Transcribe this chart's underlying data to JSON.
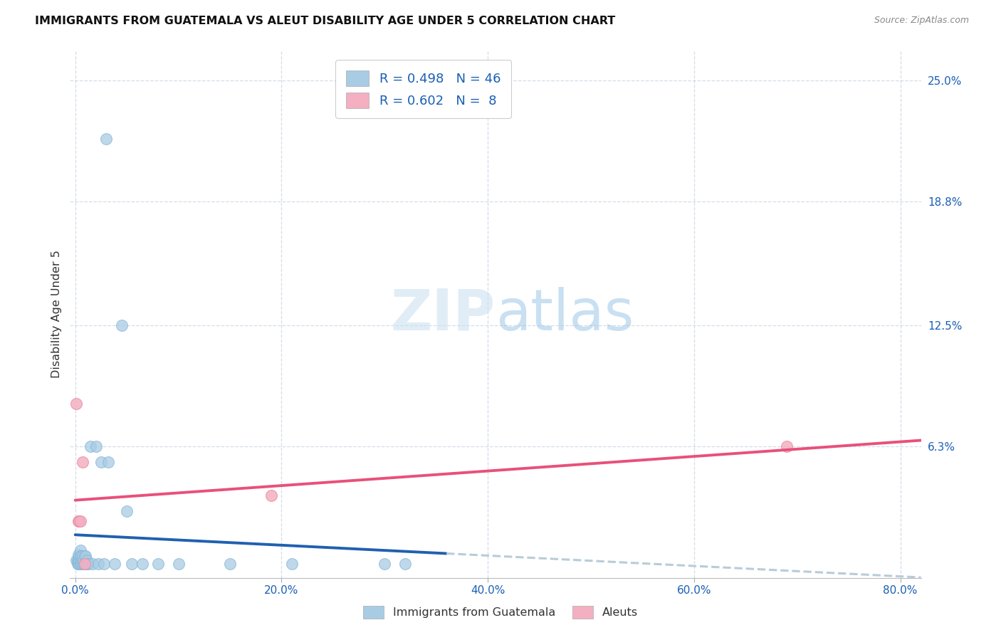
{
  "title": "IMMIGRANTS FROM GUATEMALA VS ALEUT DISABILITY AGE UNDER 5 CORRELATION CHART",
  "source": "Source: ZipAtlas.com",
  "ylabel": "Disability Age Under 5",
  "legend_label1": "Immigrants from Guatemala",
  "legend_label2": "Aleuts",
  "r1": 0.498,
  "n1": 46,
  "r2": 0.602,
  "n2": 8,
  "xlim": [
    -0.005,
    0.82
  ],
  "ylim": [
    -0.004,
    0.265
  ],
  "ytick_vals": [
    0.063,
    0.125,
    0.188,
    0.25
  ],
  "ytick_labels": [
    "6.3%",
    "12.5%",
    "18.8%",
    "25.0%"
  ],
  "xtick_vals": [
    0.0,
    0.2,
    0.4,
    0.6,
    0.8
  ],
  "xtick_labels": [
    "0.0%",
    "20.0%",
    "40.0%",
    "60.0%",
    "80.0%"
  ],
  "blue_color": "#a8cce4",
  "blue_edge": "#88b8d8",
  "pink_color": "#f4afc0",
  "pink_edge": "#e890a8",
  "trend_blue_solid": "#2060b0",
  "trend_pink": "#e8507a",
  "trend_dash_color": "#b8ccd8",
  "watermark_color": "#d4e8f5",
  "bg_color": "#ffffff",
  "grid_color": "#d4dde8",
  "blue_x": [
    0.001,
    0.002,
    0.002,
    0.003,
    0.003,
    0.003,
    0.004,
    0.004,
    0.004,
    0.005,
    0.005,
    0.005,
    0.005,
    0.006,
    0.006,
    0.007,
    0.007,
    0.007,
    0.008,
    0.008,
    0.009,
    0.009,
    0.01,
    0.01,
    0.011,
    0.012,
    0.013,
    0.015,
    0.017,
    0.02,
    0.022,
    0.025,
    0.028,
    0.032,
    0.038,
    0.05,
    0.055,
    0.065,
    0.08,
    0.1,
    0.15,
    0.21,
    0.3,
    0.32,
    0.03,
    0.045
  ],
  "blue_y": [
    0.005,
    0.003,
    0.005,
    0.003,
    0.005,
    0.008,
    0.003,
    0.005,
    0.007,
    0.003,
    0.005,
    0.007,
    0.01,
    0.003,
    0.007,
    0.003,
    0.005,
    0.007,
    0.003,
    0.005,
    0.003,
    0.007,
    0.003,
    0.007,
    0.005,
    0.003,
    0.003,
    0.063,
    0.003,
    0.063,
    0.003,
    0.055,
    0.003,
    0.055,
    0.003,
    0.03,
    0.003,
    0.003,
    0.003,
    0.003,
    0.003,
    0.003,
    0.003,
    0.003,
    0.22,
    0.125
  ],
  "pink_x": [
    0.001,
    0.003,
    0.004,
    0.005,
    0.007,
    0.009,
    0.19,
    0.69
  ],
  "pink_y": [
    0.085,
    0.025,
    0.025,
    0.025,
    0.055,
    0.003,
    0.038,
    0.063
  ],
  "blue_trend_x0": 0.0,
  "blue_trend_x1": 0.36,
  "blue_trend_dash_x0": 0.36,
  "blue_trend_dash_x1": 0.82,
  "pink_trend_x0": 0.0,
  "pink_trend_x1": 0.82
}
